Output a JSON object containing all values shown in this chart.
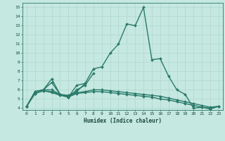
{
  "title": "",
  "xlabel": "Humidex (Indice chaleur)",
  "ylabel": "",
  "xlim": [
    -0.5,
    23.5
  ],
  "ylim": [
    3.8,
    15.5
  ],
  "yticks": [
    4,
    5,
    6,
    7,
    8,
    9,
    10,
    11,
    12,
    13,
    14,
    15
  ],
  "xticks": [
    0,
    1,
    2,
    3,
    4,
    5,
    6,
    7,
    8,
    9,
    10,
    11,
    12,
    13,
    14,
    15,
    16,
    17,
    18,
    19,
    20,
    21,
    22,
    23
  ],
  "bg_color": "#c5e8e0",
  "grid_color": "#b0d8d0",
  "line_color": "#2a7a6a",
  "line_width": 1.0,
  "marker": "D",
  "marker_size": 2.0,
  "lines": [
    [
      4.2,
      5.8,
      6.0,
      7.2,
      5.5,
      5.2,
      6.5,
      6.7,
      8.3,
      8.5,
      10.0,
      11.0,
      13.2,
      13.0,
      15.0,
      9.3,
      9.4,
      7.5,
      6.0,
      5.5,
      4.0,
      4.1,
      3.9,
      4.2
    ],
    [
      4.2,
      5.8,
      6.0,
      6.0,
      5.5,
      5.2,
      6.0,
      6.5,
      7.8,
      null,
      null,
      null,
      null,
      null,
      null,
      null,
      null,
      null,
      null,
      null,
      null,
      null,
      null,
      null
    ],
    [
      4.2,
      5.8,
      6.0,
      6.8,
      5.5,
      5.4,
      5.8,
      6.7,
      null,
      null,
      null,
      null,
      null,
      null,
      null,
      null,
      null,
      null,
      null,
      null,
      null,
      null,
      null,
      null
    ],
    [
      4.2,
      5.6,
      5.9,
      5.8,
      5.5,
      5.3,
      5.7,
      5.8,
      6.0,
      6.0,
      5.9,
      5.8,
      5.7,
      5.6,
      5.5,
      5.4,
      5.3,
      5.1,
      4.9,
      4.7,
      4.5,
      4.3,
      4.1,
      4.2
    ],
    [
      4.2,
      5.6,
      5.9,
      5.7,
      5.4,
      5.2,
      5.6,
      5.7,
      5.8,
      5.8,
      5.7,
      5.6,
      5.5,
      5.4,
      5.3,
      5.2,
      5.0,
      4.9,
      4.7,
      4.5,
      4.3,
      4.1,
      4.0,
      4.2
    ]
  ],
  "xlabel_fontsize": 5.5,
  "tick_fontsize": 4.5,
  "tick_color": "#1a4a3a",
  "spine_color": "#2a7a6a"
}
